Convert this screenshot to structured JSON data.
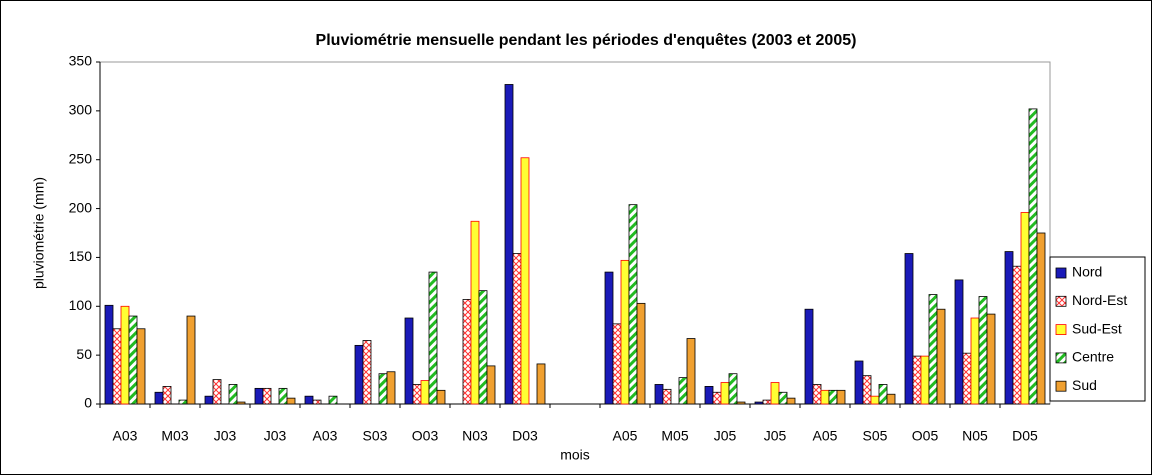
{
  "chart_data": {
    "type": "bar",
    "title": "Pluviométrie mensuelle pendant les périodes d'enquêtes (2003 et 2005)",
    "x_label": "mois",
    "y_label": "pluviométrie (mm)",
    "categories": [
      "A03",
      "M03",
      "J03",
      "J03",
      "A03",
      "S03",
      "O03",
      "N03",
      "D03",
      null,
      "A05",
      "M05",
      "J05",
      "J05",
      "A05",
      "S05",
      "O05",
      "N05",
      "D05"
    ],
    "series": [
      {
        "name": "Nord",
        "color": "#1a1ab8",
        "values": [
          101,
          12,
          8,
          16,
          8,
          60,
          88,
          0,
          327,
          null,
          135,
          20,
          18,
          2,
          97,
          44,
          154,
          127,
          156
        ]
      },
      {
        "name": "Nord-Est",
        "color": "#ff3030",
        "values": [
          77,
          18,
          25,
          16,
          4,
          65,
          20,
          107,
          154,
          null,
          82,
          15,
          12,
          4,
          20,
          29,
          49,
          52,
          141
        ]
      },
      {
        "name": "Sud-Est",
        "color": "#ffff33",
        "values": [
          100,
          0,
          0,
          0,
          0,
          0,
          24,
          187,
          252,
          null,
          147,
          0,
          22,
          22,
          14,
          8,
          49,
          88,
          196
        ]
      },
      {
        "name": "Centre",
        "color": "#22bb22",
        "values": [
          90,
          4,
          20,
          16,
          8,
          31,
          135,
          116,
          0,
          null,
          204,
          27,
          31,
          12,
          14,
          20,
          112,
          110,
          302
        ]
      },
      {
        "name": "Sud",
        "color": "#f0a030",
        "values": [
          77,
          90,
          2,
          6,
          0,
          33,
          14,
          39,
          41,
          null,
          103,
          67,
          2,
          6,
          14,
          10,
          97,
          92,
          175
        ]
      }
    ],
    "ylim": [
      0,
      350
    ],
    "yticks": [
      0,
      50,
      100,
      150,
      200,
      250,
      300,
      350
    ],
    "grid": false,
    "legend": "right"
  }
}
